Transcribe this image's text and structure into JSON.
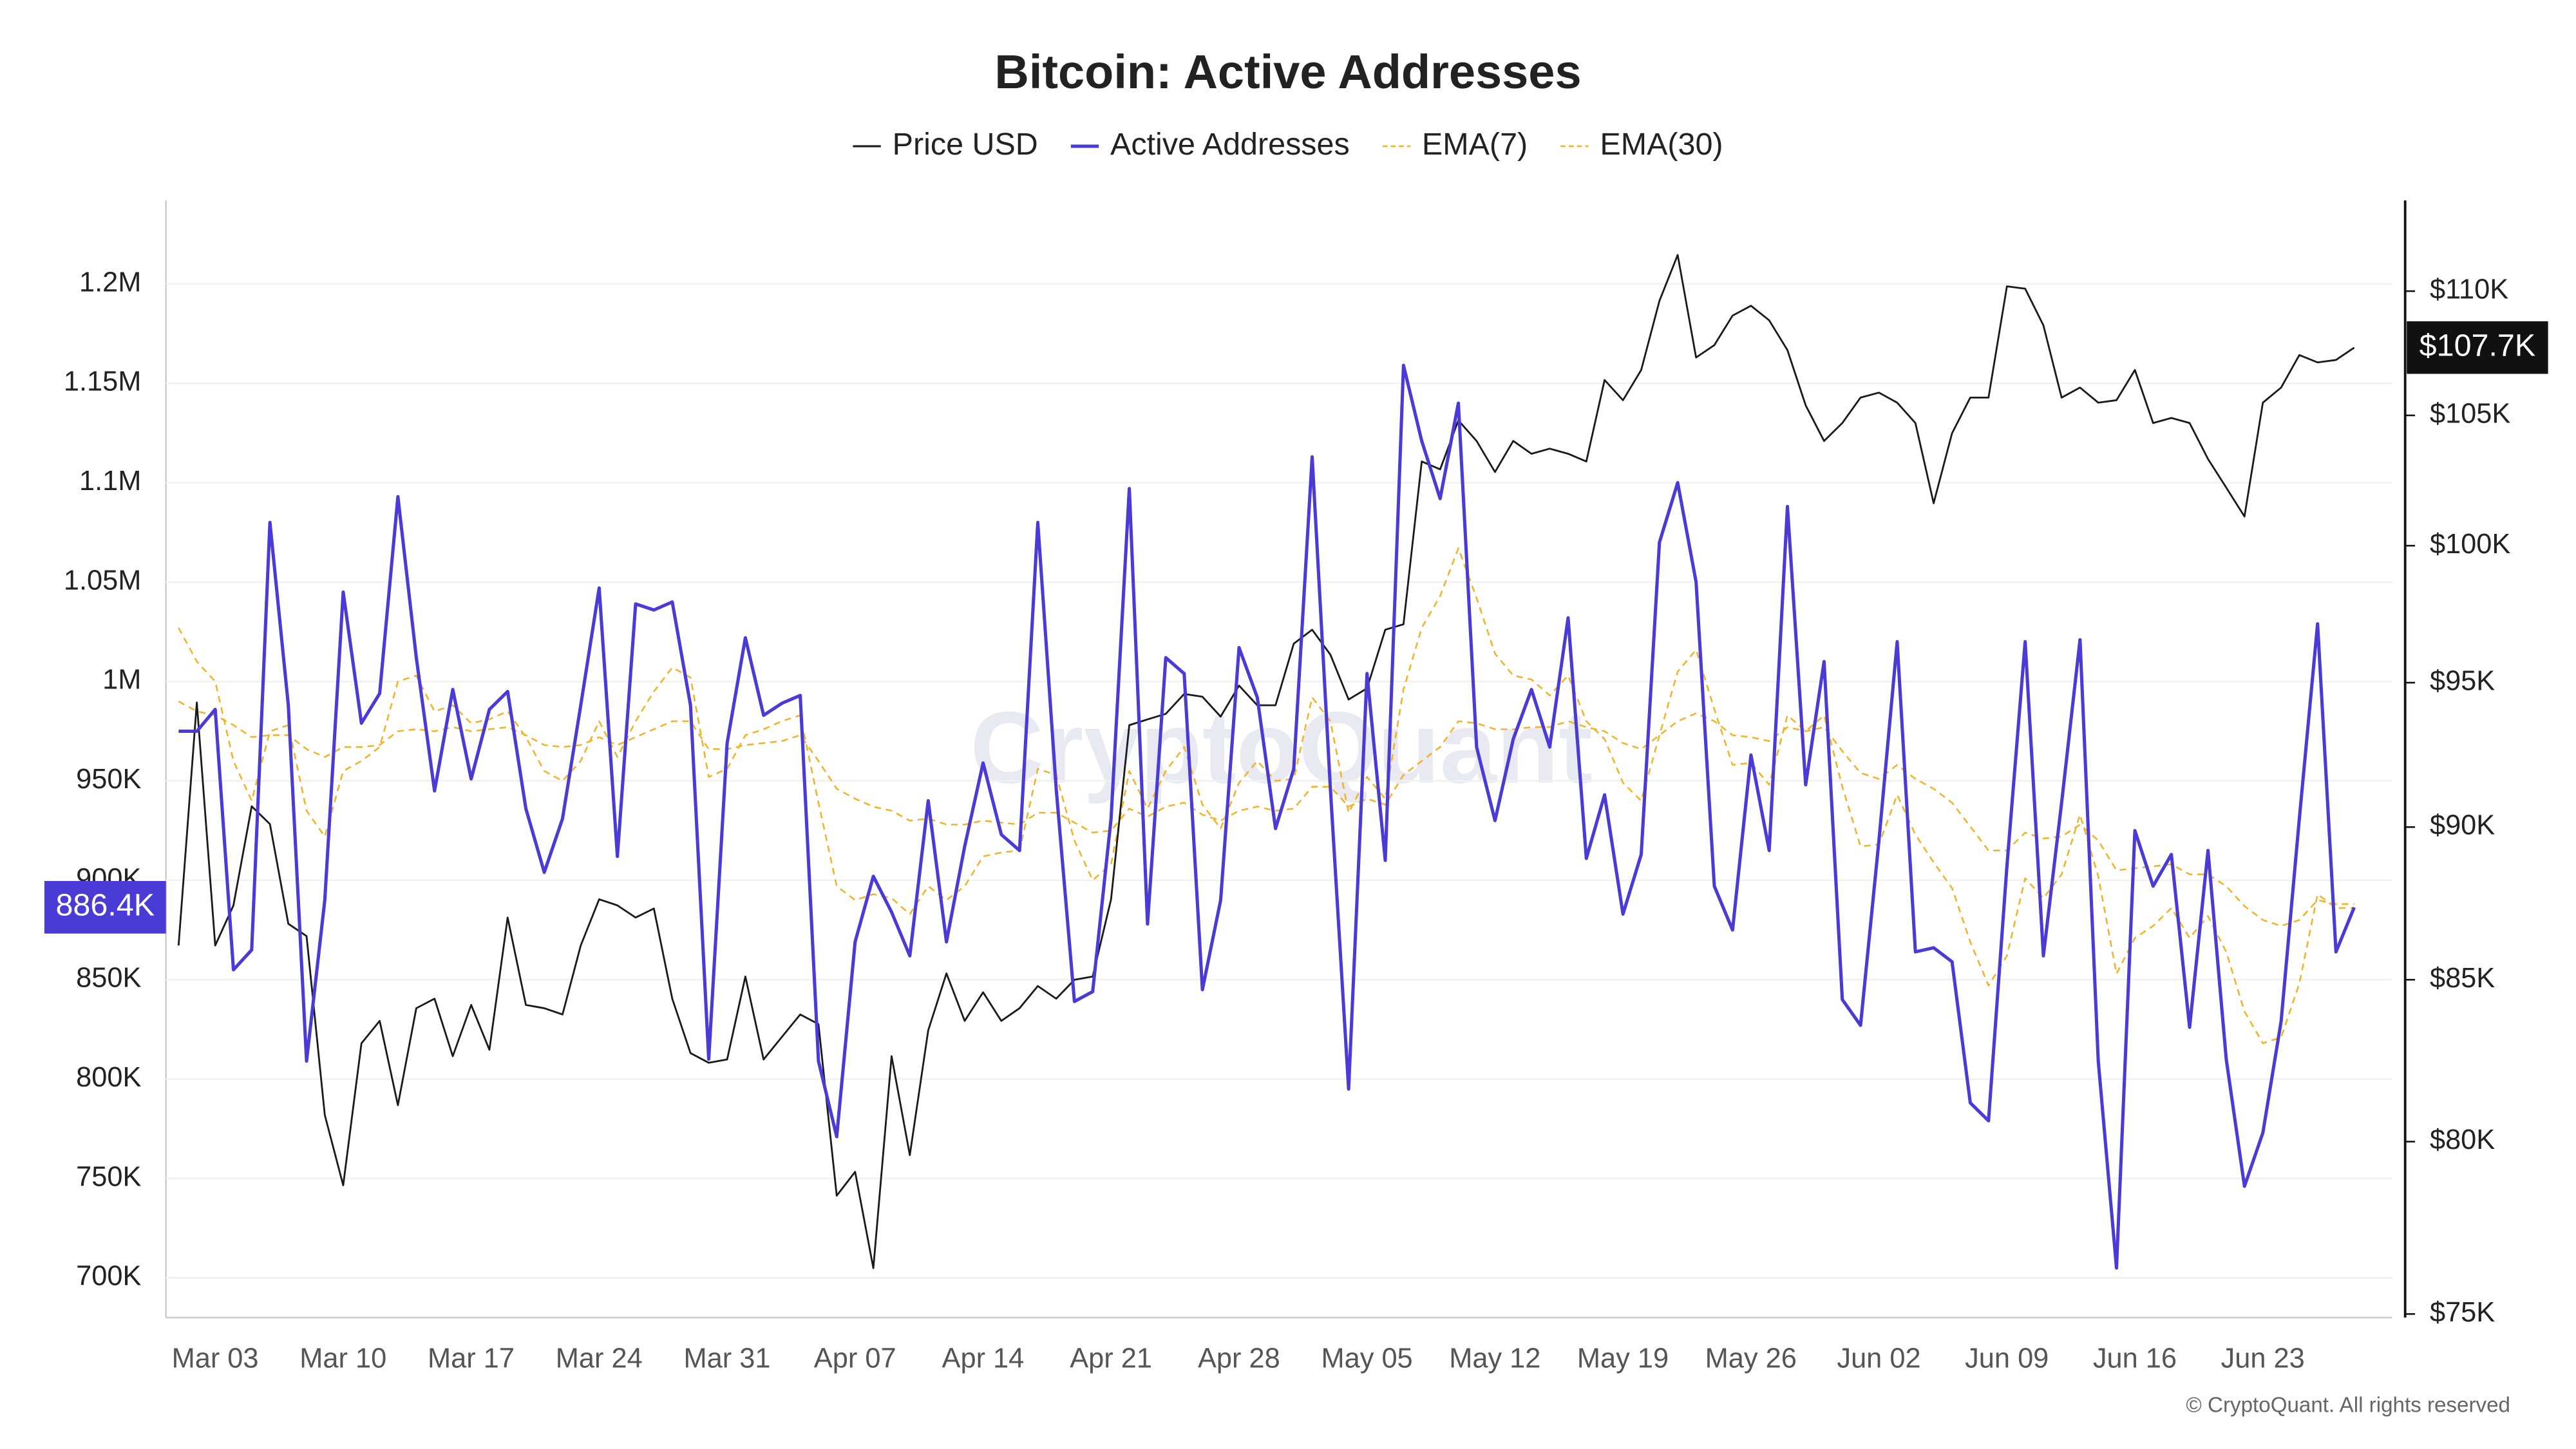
{
  "chart_data": {
    "type": "line",
    "title": "Bitcoin: Active Addresses",
    "watermark": "CryptoQuant",
    "source": "© CryptoQuant. All rights reserved",
    "categories": [
      null,
      null,
      "Mar 03",
      null,
      null,
      null,
      null,
      null,
      null,
      "Mar 10",
      null,
      null,
      null,
      null,
      null,
      null,
      "Mar 17",
      null,
      null,
      null,
      null,
      null,
      null,
      "Mar 24",
      null,
      null,
      null,
      null,
      null,
      null,
      "Mar 31",
      null,
      null,
      null,
      null,
      null,
      null,
      "Apr 07",
      null,
      null,
      null,
      null,
      null,
      null,
      "Apr 14",
      null,
      null,
      null,
      null,
      null,
      null,
      "Apr 21",
      null,
      null,
      null,
      null,
      null,
      null,
      "Apr 28",
      null,
      null,
      null,
      null,
      null,
      null,
      "May 05",
      null,
      null,
      null,
      null,
      null,
      null,
      "May 12",
      null,
      null,
      null,
      null,
      null,
      null,
      "May 19",
      null,
      null,
      null,
      null,
      null,
      null,
      "May 26",
      null,
      null,
      null,
      null,
      null,
      null,
      "Jun 02",
      null,
      null,
      null,
      null,
      null,
      null,
      "Jun 09",
      null,
      null,
      null,
      null,
      null,
      null,
      "Jun 16",
      null,
      null,
      null,
      null,
      null,
      null,
      "Jun 23",
      null,
      null,
      null,
      null,
      null
    ],
    "ylim": [
      680000,
      1242000
    ],
    "yticks": [
      {
        "value": 700000,
        "label": "700K"
      },
      {
        "value": 750000,
        "label": "750K"
      },
      {
        "value": 800000,
        "label": "800K"
      },
      {
        "value": 850000,
        "label": "850K"
      },
      {
        "value": 900000,
        "label": "900K"
      },
      {
        "value": 950000,
        "label": "950K"
      },
      {
        "value": 1000000,
        "label": "1M"
      },
      {
        "value": 1050000,
        "label": "1.05M"
      },
      {
        "value": 1100000,
        "label": "1.1M"
      },
      {
        "value": 1150000,
        "label": "1.15M"
      },
      {
        "value": 1200000,
        "label": "1.2M"
      }
    ],
    "y2lim": [
      74900,
      113800
    ],
    "y2scale": "log",
    "y2ticks": [
      {
        "value": 75000,
        "label": "$75K"
      },
      {
        "value": 80000,
        "label": "$80K"
      },
      {
        "value": 85000,
        "label": "$85K"
      },
      {
        "value": 90000,
        "label": "$90K"
      },
      {
        "value": 95000,
        "label": "$95K"
      },
      {
        "value": 100000,
        "label": "$100K"
      },
      {
        "value": 105000,
        "label": "$105K"
      },
      {
        "value": 110000,
        "label": "$110K"
      }
    ],
    "grid": true,
    "series": [
      {
        "name": "Price USD",
        "color": "#1a1a1a",
        "axis": "y2",
        "dashed": false,
        "values": [
          86100,
          94300,
          86100,
          87400,
          90700,
          90100,
          86800,
          86400,
          80800,
          78700,
          83000,
          83700,
          81100,
          84100,
          84400,
          82600,
          84200,
          82800,
          87000,
          84200,
          84100,
          83900,
          86100,
          87600,
          87400,
          87000,
          87300,
          84400,
          82700,
          82400,
          82500,
          85100,
          82500,
          83200,
          83900,
          83600,
          78400,
          79100,
          76300,
          82600,
          79600,
          83400,
          85200,
          83700,
          84600,
          83700,
          84100,
          84800,
          84400,
          85000,
          85100,
          87600,
          93500,
          93700,
          93900,
          94600,
          94500,
          93800,
          94900,
          94200,
          94200,
          96400,
          96900,
          96000,
          94400,
          94800,
          96900,
          97100,
          103200,
          102900,
          104800,
          104000,
          102800,
          104000,
          103500,
          103700,
          103500,
          103200,
          106400,
          105600,
          106800,
          109600,
          111500,
          107300,
          107800,
          109000,
          109400,
          108800,
          107600,
          105400,
          104000,
          104700,
          105700,
          105900,
          105500,
          104700,
          101600,
          104300,
          105700,
          105700,
          110200,
          110100,
          108600,
          105700,
          106100,
          105500,
          105600,
          106800,
          104700,
          104900,
          104700,
          103300,
          102200,
          101100,
          105500,
          106100,
          107400,
          107100,
          107200,
          107700
        ],
        "value_labels": [
          null,
          null,
          null,
          null,
          null,
          null,
          null,
          null,
          null,
          null,
          null,
          null,
          null,
          null,
          null,
          null,
          null,
          null,
          null,
          null,
          null,
          null,
          null,
          null,
          null,
          null,
          null,
          null,
          null,
          null,
          null,
          null,
          null,
          null,
          null,
          null,
          null,
          null,
          null,
          null,
          null,
          null,
          null,
          null,
          null,
          null,
          null,
          null,
          null,
          null,
          null,
          null,
          null,
          null,
          null,
          null,
          null,
          null,
          null,
          null,
          null,
          null,
          null,
          null,
          null,
          null,
          null,
          null,
          null,
          null,
          null,
          null,
          null,
          null,
          null,
          null,
          null,
          null,
          null,
          null,
          null,
          null,
          null,
          null,
          null,
          null,
          null,
          null,
          null,
          null,
          null,
          null,
          null,
          null,
          null,
          null,
          null,
          null,
          null,
          null,
          null,
          null,
          null,
          null,
          null,
          null,
          null,
          null,
          null,
          null,
          null,
          null,
          null,
          null,
          null,
          null,
          null,
          null,
          null,
          "$107.7K"
        ]
      },
      {
        "name": "Active Addresses",
        "color": "#4b3bd6",
        "dashed": false,
        "values": [
          975000,
          975000,
          986000,
          855000,
          865000,
          1080000,
          988000,
          809000,
          890000,
          1045000,
          979000,
          994000,
          1093000,
          1012000,
          945000,
          996000,
          951000,
          986000,
          995000,
          936000,
          904000,
          931000,
          988000,
          1047000,
          912000,
          1039000,
          1036000,
          1040000,
          988000,
          810000,
          969000,
          1022000,
          983000,
          989000,
          993000,
          809000,
          771000,
          869000,
          902000,
          884000,
          862000,
          940000,
          869000,
          917000,
          959000,
          923000,
          915000,
          1080000,
          946000,
          839000,
          844000,
          931000,
          1097000,
          878000,
          1012000,
          1004000,
          845000,
          890000,
          1017000,
          992000,
          926000,
          956000,
          1113000,
          946000,
          795000,
          1004000,
          910000,
          1159000,
          1121000,
          1092000,
          1140000,
          967000,
          930000,
          971000,
          996000,
          967000,
          1032000,
          911000,
          943000,
          883000,
          913000,
          1070000,
          1100000,
          1050000,
          897000,
          875000,
          963000,
          915000,
          1088000,
          948000,
          1010000,
          840000,
          827000,
          920000,
          1020000,
          864000,
          866000,
          859000,
          788000,
          779000,
          907000,
          1020000,
          862000,
          939000,
          1021000,
          809000,
          705000,
          925000,
          897000,
          913000,
          826000,
          915000,
          810000,
          746000,
          773000,
          829000,
          931000,
          1029000,
          864000,
          886400
        ],
        "value_labels": [
          null,
          null,
          null,
          null,
          null,
          null,
          null,
          null,
          null,
          null,
          null,
          null,
          null,
          null,
          null,
          null,
          null,
          null,
          null,
          null,
          null,
          null,
          null,
          null,
          null,
          null,
          null,
          null,
          null,
          null,
          null,
          null,
          null,
          null,
          null,
          null,
          null,
          null,
          null,
          null,
          null,
          null,
          null,
          null,
          null,
          null,
          null,
          null,
          null,
          null,
          null,
          null,
          null,
          null,
          null,
          null,
          null,
          null,
          null,
          null,
          null,
          null,
          null,
          null,
          null,
          null,
          null,
          null,
          null,
          null,
          null,
          null,
          null,
          null,
          null,
          null,
          null,
          null,
          null,
          null,
          null,
          null,
          null,
          null,
          null,
          null,
          null,
          null,
          null,
          null,
          null,
          null,
          null,
          null,
          null,
          null,
          null,
          null,
          null,
          null,
          null,
          null,
          null,
          null,
          null,
          null,
          null,
          null,
          null,
          null,
          null,
          null,
          null,
          null,
          null,
          null,
          null,
          null,
          null,
          "886.4K"
        ]
      },
      {
        "name": "EMA(7)",
        "color": "#f0b429",
        "dashed": true,
        "values": [
          1027000,
          1010000,
          1000000,
          960000,
          940000,
          975000,
          978000,
          935000,
          922000,
          955000,
          960000,
          967000,
          1000000,
          1003000,
          985000,
          988000,
          979000,
          981000,
          985000,
          972000,
          955000,
          950000,
          960000,
          980000,
          962000,
          980000,
          995000,
          1007000,
          1002000,
          952000,
          956000,
          973000,
          976000,
          980000,
          983000,
          939000,
          897000,
          890000,
          893000,
          891000,
          883000,
          897000,
          890000,
          897000,
          912000,
          914000,
          915000,
          956000,
          953000,
          920000,
          900000,
          908000,
          955000,
          936000,
          955000,
          967000,
          938000,
          926000,
          949000,
          960000,
          950000,
          951000,
          992000,
          980000,
          934000,
          952000,
          941000,
          996000,
          1027000,
          1043000,
          1067000,
          1042000,
          1014000,
          1003000,
          1001000,
          993000,
          1003000,
          980000,
          971000,
          949000,
          940000,
          973000,
          1005000,
          1016000,
          986000,
          958000,
          959000,
          948000,
          983000,
          975000,
          983000,
          947000,
          917000,
          918000,
          943000,
          923000,
          909000,
          896000,
          869000,
          847000,
          862000,
          901000,
          891000,
          903000,
          933000,
          902000,
          853000,
          871000,
          877000,
          886000,
          871000,
          882000,
          864000,
          834000,
          818000,
          821000,
          848000,
          893000,
          886000,
          886000
        ]
      },
      {
        "name": "EMA(30)",
        "color": "#f0b429",
        "dashed": true,
        "values": [
          990000,
          985000,
          983000,
          978000,
          972000,
          973000,
          973000,
          966000,
          962000,
          967000,
          967000,
          968000,
          975000,
          976000,
          975000,
          977000,
          975000,
          976000,
          977000,
          973000,
          968000,
          967000,
          968000,
          972000,
          968000,
          972000,
          976000,
          980000,
          980000,
          966000,
          966000,
          968000,
          969000,
          970000,
          973000,
          960000,
          946000,
          941000,
          937000,
          935000,
          930000,
          931000,
          928000,
          928000,
          930000,
          929000,
          928000,
          934000,
          934000,
          929000,
          924000,
          925000,
          936000,
          932000,
          937000,
          939000,
          933000,
          930000,
          935000,
          937000,
          935000,
          936000,
          947000,
          947000,
          937000,
          941000,
          938000,
          953000,
          960000,
          967000,
          980000,
          979000,
          976000,
          976000,
          977000,
          977000,
          980000,
          977000,
          975000,
          969000,
          966000,
          973000,
          980000,
          984000,
          980000,
          973000,
          972000,
          970000,
          977000,
          975000,
          977000,
          965000,
          954000,
          951000,
          958000,
          951000,
          946000,
          939000,
          927000,
          915000,
          915000,
          924000,
          921000,
          922000,
          928000,
          920000,
          905000,
          906000,
          907000,
          908000,
          903000,
          903000,
          897000,
          887000,
          880000,
          877000,
          880000,
          890000,
          888000,
          888000
        ]
      }
    ]
  }
}
